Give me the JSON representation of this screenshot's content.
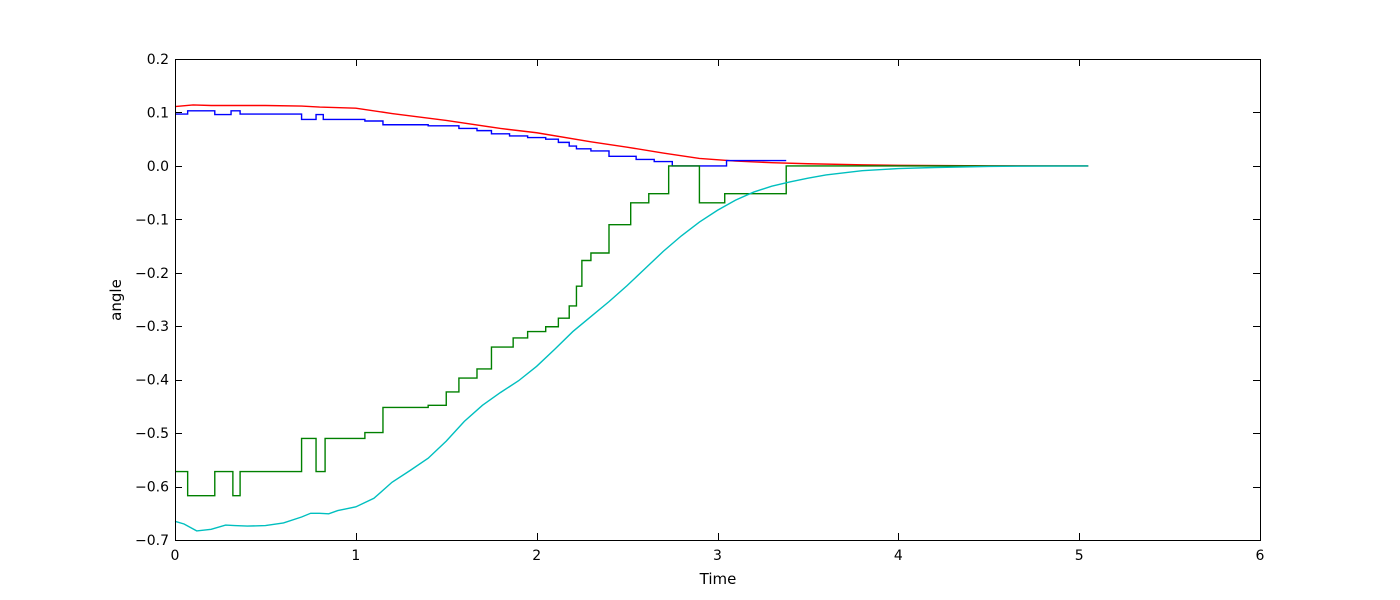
{
  "chart_data": {
    "type": "line",
    "title": "",
    "xlabel": "Time",
    "ylabel": "angle",
    "xlim": [
      0,
      6
    ],
    "ylim": [
      -0.7,
      0.2
    ],
    "xticks": [
      0,
      1,
      2,
      3,
      4,
      5,
      6
    ],
    "xtick_labels": [
      "0",
      "1",
      "2",
      "3",
      "4",
      "5",
      "6"
    ],
    "yticks": [
      -0.7,
      -0.6,
      -0.5,
      -0.4,
      -0.3,
      -0.2,
      -0.1,
      0.0,
      0.1,
      0.2
    ],
    "ytick_labels": [
      "−0.7",
      "−0.6",
      "−0.5",
      "−0.4",
      "−0.3",
      "−0.2",
      "−0.1",
      "0.0",
      "0.1",
      "0.2"
    ],
    "grid": false,
    "series": [
      {
        "color": "#ff0000",
        "x": [
          0,
          0.1,
          0.2,
          0.3,
          0.5,
          0.7,
          0.8,
          1.0,
          1.2,
          1.5,
          1.8,
          2.0,
          2.3,
          2.5,
          2.7,
          2.9,
          3.1,
          3.3,
          3.5,
          3.8,
          4.0,
          4.5,
          5.05
        ],
        "y": [
          0.111,
          0.114,
          0.113,
          0.113,
          0.113,
          0.112,
          0.11,
          0.108,
          0.098,
          0.085,
          0.07,
          0.062,
          0.045,
          0.035,
          0.024,
          0.014,
          0.009,
          0.006,
          0.004,
          0.002,
          0.001,
          0.0002,
          0.0
        ]
      },
      {
        "color": "#0000ff",
        "x": [
          0,
          0.07,
          0.07,
          0.22,
          0.22,
          0.31,
          0.31,
          0.36,
          0.36,
          0.7,
          0.7,
          0.78,
          0.78,
          0.82,
          0.82,
          1.05,
          1.05,
          1.15,
          1.15,
          1.4,
          1.4,
          1.57,
          1.57,
          1.67,
          1.67,
          1.75,
          1.75,
          1.85,
          1.85,
          1.95,
          1.95,
          2.05,
          2.05,
          2.12,
          2.12,
          2.18,
          2.18,
          2.22,
          2.22,
          2.3,
          2.3,
          2.4,
          2.4,
          2.55,
          2.55,
          2.65,
          2.65,
          2.75,
          2.75,
          3.05,
          3.05,
          3.38
        ],
        "y": [
          0.097,
          0.097,
          0.103,
          0.103,
          0.096,
          0.096,
          0.103,
          0.103,
          0.097,
          0.097,
          0.087,
          0.087,
          0.096,
          0.096,
          0.087,
          0.087,
          0.084,
          0.084,
          0.077,
          0.077,
          0.075,
          0.075,
          0.07,
          0.07,
          0.066,
          0.066,
          0.06,
          0.06,
          0.056,
          0.056,
          0.053,
          0.053,
          0.05,
          0.05,
          0.044,
          0.044,
          0.037,
          0.037,
          0.032,
          0.032,
          0.028,
          0.028,
          0.018,
          0.018,
          0.012,
          0.012,
          0.008,
          0.008,
          0.0,
          0.0,
          0.01,
          0.01
        ]
      },
      {
        "color": "#008000",
        "x": [
          0,
          0.07,
          0.07,
          0.22,
          0.22,
          0.32,
          0.32,
          0.36,
          0.36,
          0.7,
          0.7,
          0.78,
          0.78,
          0.83,
          0.83,
          1.05,
          1.05,
          1.15,
          1.15,
          1.4,
          1.4,
          1.5,
          1.5,
          1.57,
          1.57,
          1.67,
          1.67,
          1.75,
          1.75,
          1.87,
          1.87,
          1.95,
          1.95,
          2.05,
          2.05,
          2.12,
          2.12,
          2.18,
          2.18,
          2.22,
          2.22,
          2.25,
          2.25,
          2.3,
          2.3,
          2.4,
          2.4,
          2.52,
          2.52,
          2.62,
          2.62,
          2.73,
          2.73,
          2.9,
          2.9,
          3.04,
          3.04,
          3.38,
          3.38,
          5.05
        ],
        "y": [
          -0.572,
          -0.572,
          -0.617,
          -0.617,
          -0.572,
          -0.572,
          -0.617,
          -0.617,
          -0.572,
          -0.572,
          -0.51,
          -0.51,
          -0.572,
          -0.572,
          -0.51,
          -0.51,
          -0.499,
          -0.499,
          -0.452,
          -0.452,
          -0.448,
          -0.448,
          -0.423,
          -0.423,
          -0.397,
          -0.397,
          -0.38,
          -0.38,
          -0.339,
          -0.339,
          -0.322,
          -0.322,
          -0.31,
          -0.31,
          -0.301,
          -0.301,
          -0.285,
          -0.285,
          -0.262,
          -0.262,
          -0.225,
          -0.225,
          -0.177,
          -0.177,
          -0.163,
          -0.163,
          -0.11,
          -0.11,
          -0.069,
          -0.069,
          -0.052,
          -0.052,
          0.0,
          0.0,
          -0.069,
          -0.069,
          -0.052,
          -0.052,
          0.0,
          0.0
        ]
      },
      {
        "color": "#00bfbf",
        "x": [
          0,
          0.05,
          0.12,
          0.2,
          0.28,
          0.33,
          0.4,
          0.5,
          0.6,
          0.7,
          0.75,
          0.8,
          0.85,
          0.9,
          1.0,
          1.1,
          1.2,
          1.3,
          1.4,
          1.5,
          1.6,
          1.7,
          1.8,
          1.9,
          2.0,
          2.1,
          2.2,
          2.3,
          2.4,
          2.5,
          2.6,
          2.7,
          2.8,
          2.9,
          3.0,
          3.1,
          3.2,
          3.3,
          3.4,
          3.5,
          3.6,
          3.8,
          4.0,
          4.2,
          4.5,
          4.8,
          5.05
        ],
        "y": [
          -0.665,
          -0.67,
          -0.683,
          -0.68,
          -0.672,
          -0.673,
          -0.674,
          -0.673,
          -0.668,
          -0.657,
          -0.65,
          -0.65,
          -0.651,
          -0.645,
          -0.638,
          -0.622,
          -0.592,
          -0.57,
          -0.547,
          -0.515,
          -0.478,
          -0.448,
          -0.424,
          -0.402,
          -0.375,
          -0.343,
          -0.31,
          -0.282,
          -0.254,
          -0.224,
          -0.192,
          -0.16,
          -0.131,
          -0.105,
          -0.083,
          -0.064,
          -0.049,
          -0.038,
          -0.03,
          -0.023,
          -0.017,
          -0.009,
          -0.005,
          -0.003,
          -0.001,
          -0.0003,
          0.0
        ]
      }
    ]
  }
}
